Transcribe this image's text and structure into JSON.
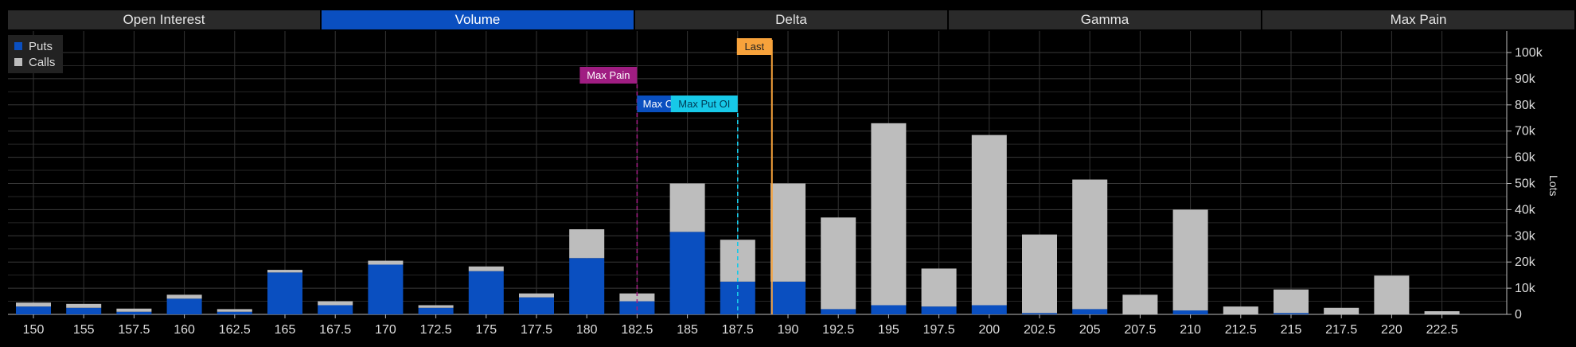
{
  "tabs": [
    {
      "label": "Open Interest",
      "active": false
    },
    {
      "label": "Volume",
      "active": true
    },
    {
      "label": "Delta",
      "active": false
    },
    {
      "label": "Gamma",
      "active": false
    },
    {
      "label": "Max Pain",
      "active": false
    }
  ],
  "legend": [
    {
      "label": "Puts",
      "color": "#0a4fc0"
    },
    {
      "label": "Calls",
      "color": "#bdbdbd"
    }
  ],
  "chart_data": {
    "type": "bar",
    "stacked": true,
    "ylabel": "Lots",
    "ylim": [
      0,
      105000
    ],
    "yticks": [
      0,
      10000,
      20000,
      30000,
      40000,
      50000,
      60000,
      70000,
      80000,
      90000,
      100000
    ],
    "ytick_labels": [
      "0",
      "10k",
      "20k",
      "30k",
      "40k",
      "50k",
      "60k",
      "70k",
      "80k",
      "90k",
      "100k"
    ],
    "categories": [
      "150",
      "155",
      "157.5",
      "160",
      "162.5",
      "165",
      "167.5",
      "170",
      "172.5",
      "175",
      "177.5",
      "180",
      "182.5",
      "185",
      "187.5",
      "190",
      "192.5",
      "195",
      "197.5",
      "200",
      "202.5",
      "205",
      "207.5",
      "210",
      "212.5",
      "215",
      "217.5",
      "220",
      "222.5"
    ],
    "series": [
      {
        "name": "Puts",
        "color": "#0a4fc0",
        "values": [
          3000,
          2500,
          1000,
          6000,
          1000,
          16000,
          3500,
          19000,
          2500,
          16500,
          6500,
          21500,
          5000,
          31500,
          12500,
          12500,
          2000,
          3500,
          3000,
          3500,
          500,
          2000,
          0,
          1500,
          0,
          500,
          0,
          0,
          0
        ]
      },
      {
        "name": "Calls",
        "color": "#bdbdbd",
        "values": [
          1500,
          1500,
          1200,
          1500,
          1000,
          1000,
          1500,
          1500,
          1000,
          1800,
          1500,
          11000,
          3000,
          18500,
          16000,
          37500,
          35000,
          69500,
          14500,
          65000,
          30000,
          49500,
          7500,
          38500,
          3000,
          9000,
          2500,
          14800,
          1200
        ]
      }
    ],
    "markers": [
      {
        "label": "Max Pain",
        "strike": 180,
        "color": "#a01d82",
        "style": "dashed"
      },
      {
        "label": "Max C",
        "strike": 180,
        "color": "#0a4fc0",
        "style": "dashed"
      },
      {
        "label": "Max Put OI",
        "strike": 185,
        "color": "#17c9e8",
        "style": "dashed"
      },
      {
        "label": "Last",
        "strike": 186.7,
        "color": "#f7a23b",
        "style": "solid"
      }
    ]
  }
}
